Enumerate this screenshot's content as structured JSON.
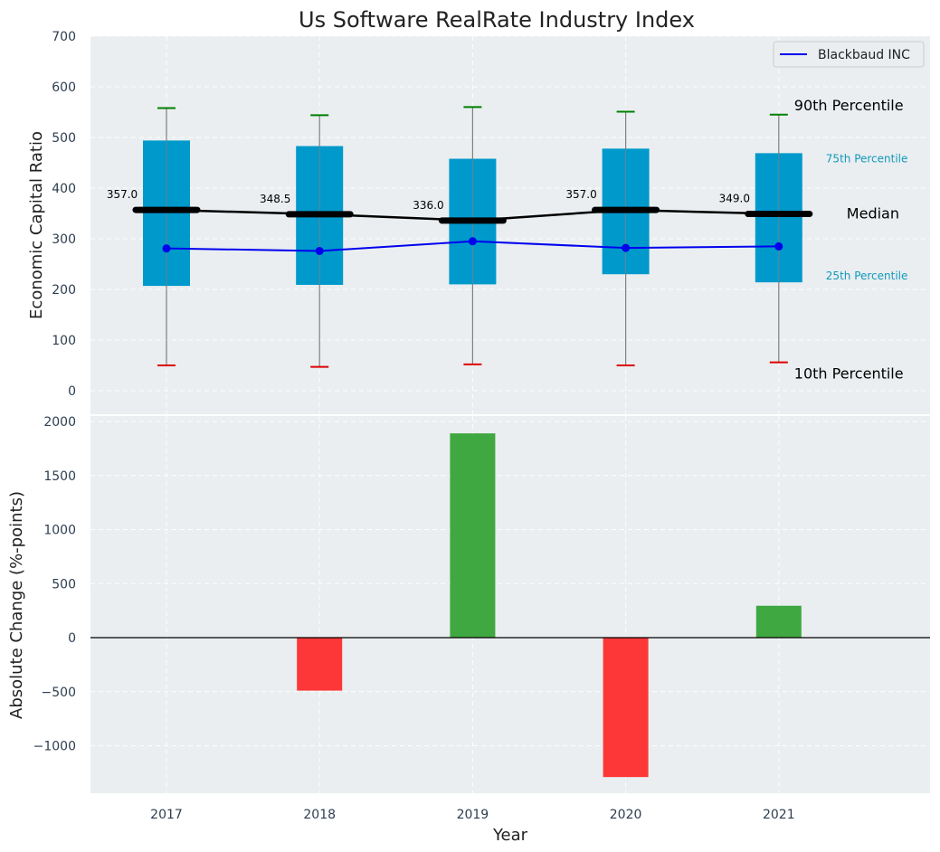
{
  "colors": {
    "panel_bg": "#eaeef0",
    "box": "#0099cc",
    "whisker": "#808080",
    "p90_cap": "#008000",
    "p10_cap": "#dd0000",
    "median": "#000000",
    "company": "#0000ee",
    "positive": "#2ca02c",
    "negative": "#ff2222",
    "pct_small": "#1199bb"
  },
  "chart_data": [
    {
      "type": "box",
      "title": "Us Software RealRate Industry Index",
      "ylabel": "Economic Capital Ratio",
      "ylim": [
        -50,
        700
      ],
      "yticks": [
        0,
        100,
        200,
        300,
        400,
        500,
        600,
        700
      ],
      "categories": [
        "2017",
        "2018",
        "2019",
        "2020",
        "2021"
      ],
      "p10": [
        50,
        47,
        52,
        50,
        56
      ],
      "p25": [
        207,
        209,
        210,
        230,
        214
      ],
      "median": [
        357.0,
        348.5,
        336.0,
        357.0,
        349.0
      ],
      "median_labels": [
        "357.0",
        "348.5",
        "336.0",
        "357.0",
        "349.0"
      ],
      "p75": [
        494,
        483,
        458,
        478,
        469
      ],
      "p90": [
        558,
        544,
        560,
        551,
        545
      ],
      "series": [
        {
          "name": "Blackbaud INC",
          "values": [
            281,
            276,
            295,
            282,
            285
          ]
        }
      ],
      "annotations": {
        "p90": "90th Percentile",
        "p75": "75th Percentile",
        "median": "Median",
        "p25": "25th Percentile",
        "p10": "10th Percentile"
      },
      "legend_position": "top-right",
      "grid": true
    },
    {
      "type": "bar",
      "ylabel": "Absolute Change (%-points)",
      "xlabel": "Year",
      "ylim": [
        -1440,
        2100
      ],
      "yticks": [
        -1000,
        -500,
        0,
        500,
        1000,
        1500,
        2000
      ],
      "ytick_labels": [
        "−1000",
        "−500",
        "0",
        "500",
        "1000",
        "1500",
        "2000"
      ],
      "categories": [
        "2017",
        "2018",
        "2019",
        "2020",
        "2021"
      ],
      "values": [
        0,
        -490,
        1890,
        -1290,
        295
      ],
      "grid": true
    }
  ]
}
